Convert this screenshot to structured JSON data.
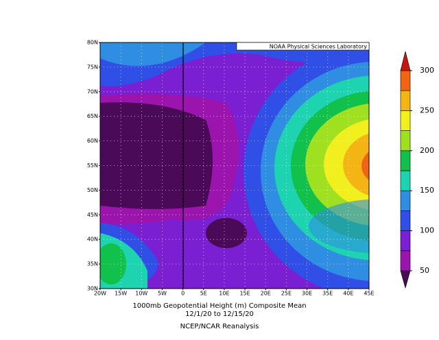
{
  "header": {
    "badge": "NOAA Physical Sciences Laboratory"
  },
  "axes": {
    "lat_labels": [
      "30N",
      "35N",
      "40N",
      "45N",
      "50N",
      "55N",
      "60N",
      "65N",
      "70N",
      "75N",
      "80N"
    ],
    "lon_labels": [
      "20W",
      "15W",
      "10W",
      "5W",
      "0",
      "5E",
      "10E",
      "15E",
      "20E",
      "25E",
      "30E",
      "35E",
      "40E",
      "45E"
    ]
  },
  "colorbar": {
    "ticks": [
      50,
      100,
      150,
      200,
      250,
      300
    ],
    "colors": [
      "#4a0a58",
      "#9c14ae",
      "#7a1fd2",
      "#2f4fe6",
      "#2f8ee2",
      "#1ed3b0",
      "#12c04c",
      "#9fe021",
      "#f2ef1e",
      "#f3b414",
      "#f06414",
      "#c8160f"
    ]
  },
  "footer": {
    "line1": "1000mb Geopotential Height (m) Composite Mean",
    "line2": "12/1/20  to 12/15/20",
    "line3": "NCEP/NCAR Reanalysis"
  }
}
